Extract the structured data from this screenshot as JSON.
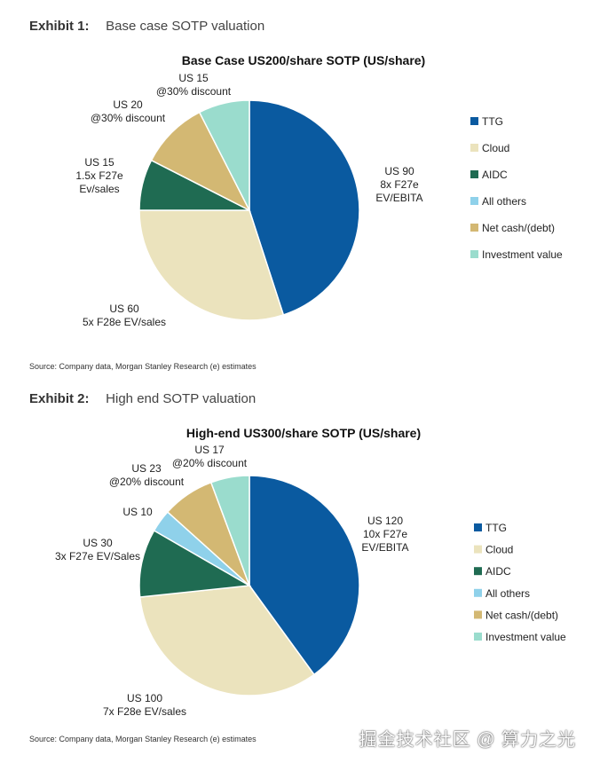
{
  "exhibits": [
    {
      "number": "Exhibit 1:",
      "title": "Base case SOTP valuation",
      "source": "Source: Company data, Morgan Stanley Research (e) estimates"
    },
    {
      "number": "Exhibit 2:",
      "title": "High end SOTP valuation",
      "source": "Source: Company data, Morgan Stanley Research (e) estimates"
    }
  ],
  "watermark": "掘金技术社区 @ 算力之光",
  "chart_data": [
    {
      "type": "pie",
      "title": "Base Case US200/share SOTP (US/share)",
      "legend_position": "right",
      "categories": [
        "TTG",
        "Cloud",
        "AIDC",
        "All others",
        "Net cash/(debt)",
        "Investment value"
      ],
      "values": [
        90,
        60,
        15,
        0,
        20,
        15
      ],
      "colors": [
        "#0a5aa0",
        "#ebe3bd",
        "#1f6b52",
        "#8fd1ea",
        "#d3b873",
        "#9adccd"
      ],
      "slice_labels": [
        [
          "US 90",
          "8x F27e",
          "EV/EBITA"
        ],
        [
          "US 60",
          "5x F28e EV/sales"
        ],
        [
          "US 15",
          "1.5x F27e",
          "Ev/sales"
        ],
        [],
        [
          "US 20",
          "@30% discount"
        ],
        [
          "US 15",
          "@30% discount"
        ]
      ]
    },
    {
      "type": "pie",
      "title": "High-end US300/share SOTP (US/share)",
      "legend_position": "right",
      "categories": [
        "TTG",
        "Cloud",
        "AIDC",
        "All others",
        "Net cash/(debt)",
        "Investment value"
      ],
      "values": [
        120,
        100,
        30,
        10,
        23,
        17
      ],
      "colors": [
        "#0a5aa0",
        "#ebe3bd",
        "#1f6b52",
        "#8fd1ea",
        "#d3b873",
        "#9adccd"
      ],
      "slice_labels": [
        [
          "US 120",
          "10x F27e",
          "EV/EBITA"
        ],
        [
          "US 100",
          "7x F28e EV/sales"
        ],
        [
          "US 30",
          "3x F27e EV/Sales"
        ],
        [
          "US 10"
        ],
        [
          "US 23",
          "@20% discount"
        ],
        [
          "US 17",
          "@20% discount"
        ]
      ]
    }
  ]
}
